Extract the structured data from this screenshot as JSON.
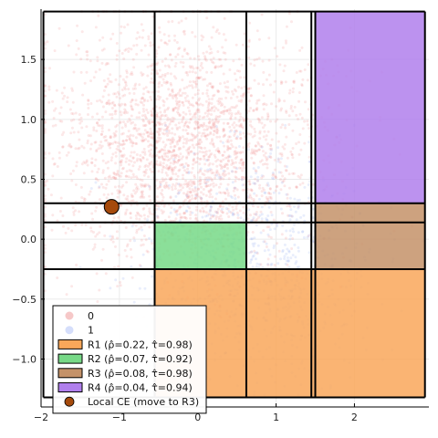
{
  "chart_data": {
    "type": "scatter",
    "title": "",
    "xlabel": "",
    "ylabel": "",
    "xlim": [
      -2.0,
      2.95
    ],
    "ylim": [
      -1.4,
      1.92
    ],
    "xticks": [
      -2,
      -1,
      0,
      1,
      2
    ],
    "yticks": [
      -1.0,
      -0.5,
      0.0,
      0.5,
      1.0,
      1.5
    ],
    "xtick_labels": [
      "−2",
      "−1",
      "0",
      "1",
      "2"
    ],
    "ytick_labels": [
      "−1.0",
      "−0.5",
      "0.0",
      "0.5",
      "1.0",
      "1.5"
    ],
    "grid": true,
    "legend_position": "bottom-left",
    "series": [
      {
        "name": "0",
        "kind": "points",
        "color": "#f08a8a",
        "approx_count": 2600,
        "distribution": "x ~ -2 to 2.9, y ~ -0.6 to 1.9, densest around x=-0.5..0.5, y=0.3..1.0"
      },
      {
        "name": "1",
        "kind": "points",
        "color": "#8fa8ee",
        "approx_count": 1000,
        "distribution": "x ~ -1.5 to 2.9, y ~ -1.3 to 0.9, densest around x=0..1.5, y=-0.6..0.5"
      }
    ],
    "regions": [
      {
        "name": "R1 (ρ̂=0.22, τ̂=0.98)",
        "color": "#f9a75a",
        "x": [
          -0.55,
          2.9
        ],
        "y": [
          -1.32,
          -0.25
        ]
      },
      {
        "name": "R2 (ρ̂=0.07, τ̂=0.92)",
        "color": "#77d987",
        "x": [
          -0.55,
          0.62
        ],
        "y": [
          -0.25,
          0.14
        ]
      },
      {
        "name": "R3 (ρ̂=0.08, τ̂=0.98)",
        "color": "#c49269",
        "x": [
          1.5,
          2.9
        ],
        "y": [
          -0.25,
          0.3
        ]
      },
      {
        "name": "R4 (ρ̂=0.04, τ̂=0.94)",
        "color": "#b07fec",
        "x": [
          1.5,
          2.9
        ],
        "y": [
          0.3,
          1.9
        ]
      }
    ],
    "grid_lines": {
      "vertical": [
        -1.97,
        -0.55,
        0.62,
        1.45,
        1.5,
        2.9
      ],
      "horizontal": [
        -1.32,
        -0.25,
        0.14,
        0.3,
        1.9
      ],
      "color": "#000000"
    },
    "marker": {
      "name": "Local CE (move to R3)",
      "x": -1.1,
      "y": 0.27,
      "color": "#a54a0c"
    },
    "legend": [
      {
        "label": "0",
        "kind": "dot",
        "color": "#f6c8c8"
      },
      {
        "label": "1",
        "kind": "dot",
        "color": "#d5defb"
      },
      {
        "label": "R1 (ρ̂=0.22, τ̂=0.98)",
        "kind": "box",
        "color": "#f9a75a"
      },
      {
        "label": "R2 (ρ̂=0.07, τ̂=0.92)",
        "kind": "box",
        "color": "#77d987"
      },
      {
        "label": "R3 (ρ̂=0.08, τ̂=0.98)",
        "kind": "box",
        "color": "#c49269"
      },
      {
        "label": "R4 (ρ̂=0.04, τ̂=0.94)",
        "kind": "box",
        "color": "#b07fec"
      },
      {
        "label": "Local CE (move to R3)",
        "kind": "marker",
        "color": "#a54a0c"
      }
    ]
  }
}
